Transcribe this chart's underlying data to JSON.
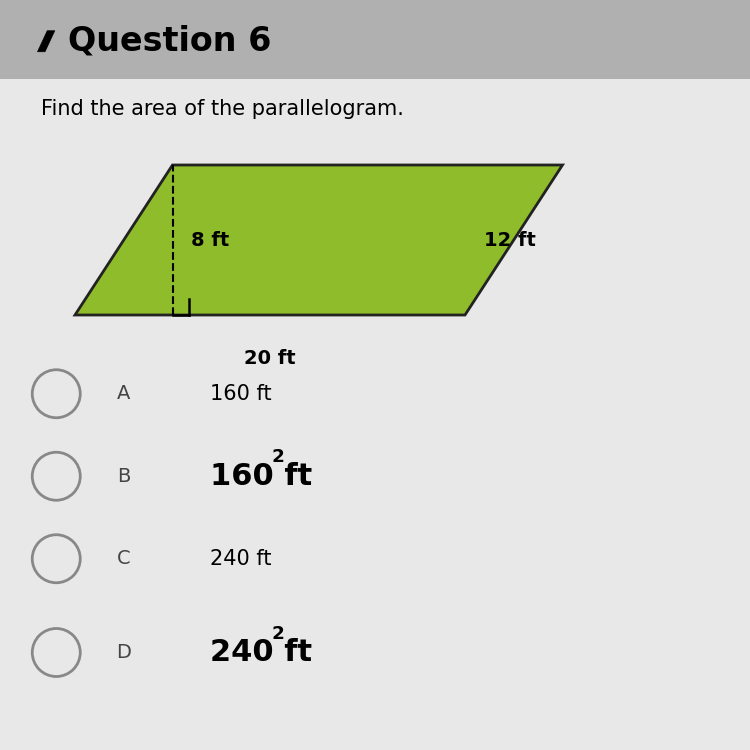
{
  "title": "Question 6",
  "subtitle": "Find the area of the parallelogram.",
  "bg_color": "#e8e8e8",
  "header_bg": "#b0b0b0",
  "content_bg": "#e0dede",
  "parallelogram_color": "#8fbc2a",
  "parallelogram_edge_color": "#222222",
  "label_base": "20 ft",
  "label_height": "8 ft",
  "label_side": "12 ft",
  "choices": [
    "A",
    "B",
    "C",
    "D"
  ],
  "answers": [
    "160 ft",
    "160 ft2",
    "240 ft",
    "240 ft2"
  ],
  "answer_bold": [
    false,
    true,
    false,
    true
  ],
  "answer_fontsize": [
    15,
    22,
    15,
    22
  ],
  "title_fontsize": 24,
  "subtitle_fontsize": 15,
  "choice_fontsize": 14
}
